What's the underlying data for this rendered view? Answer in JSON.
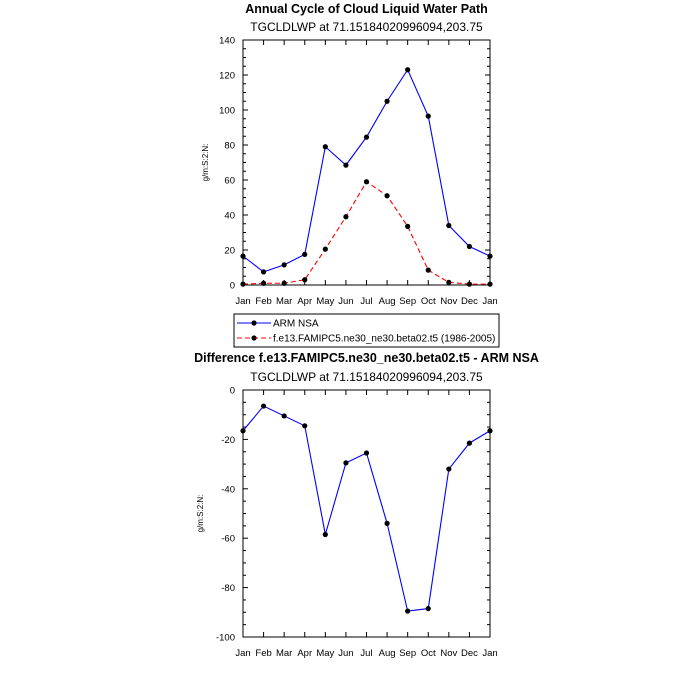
{
  "chart_data": [
    {
      "type": "line",
      "title": "Annual Cycle of Cloud Liquid Water Path",
      "subtitle": "TGCLDLWP at 71.15184020996094,203.75",
      "ylabel": "g/m:S:2:N:",
      "categories": [
        "Jan",
        "Feb",
        "Mar",
        "Apr",
        "May",
        "Jun",
        "Jul",
        "Aug",
        "Sep",
        "Oct",
        "Nov",
        "Dec",
        "Jan"
      ],
      "ylim": [
        0,
        140
      ],
      "yticks": [
        0,
        20,
        40,
        60,
        80,
        100,
        120,
        140
      ],
      "series": [
        {
          "name": "ARM NSA",
          "color": "#0000ff",
          "dash": "solid",
          "values": [
            16.5,
            7.5,
            11.5,
            17.5,
            79,
            68.5,
            84.5,
            105,
            123,
            96.5,
            34,
            22,
            16.5
          ]
        },
        {
          "name": "f.e13.FAMIPC5.ne30_ne30.beta02.t5 (1986-2005)",
          "color": "#ff0000",
          "dash": "dashed",
          "values": [
            0.5,
            1,
            1,
            3,
            20.5,
            39,
            59,
            51,
            33.5,
            8.5,
            1.5,
            0.5,
            0.5
          ]
        }
      ],
      "legend_position": "bottom"
    },
    {
      "type": "line",
      "title": "Difference f.e13.FAMIPC5.ne30_ne30.beta02.t5 - ARM NSA",
      "subtitle": "TGCLDLWP at 71.15184020996094,203.75",
      "ylabel": "g/m:S:2:N:",
      "categories": [
        "Jan",
        "Feb",
        "Mar",
        "Apr",
        "May",
        "Jun",
        "Jul",
        "Aug",
        "Sep",
        "Oct",
        "Nov",
        "Dec",
        "Jan"
      ],
      "ylim": [
        -100,
        0
      ],
      "yticks": [
        -100,
        -80,
        -60,
        -40,
        -20,
        0
      ],
      "series": [
        {
          "color": "#0000ff",
          "dash": "solid",
          "values": [
            -16.5,
            -6.5,
            -10.5,
            -14.5,
            -58.5,
            -29.5,
            -25.5,
            -54,
            -89.5,
            -88.5,
            -32,
            -21.5,
            -16.5
          ]
        }
      ]
    }
  ]
}
